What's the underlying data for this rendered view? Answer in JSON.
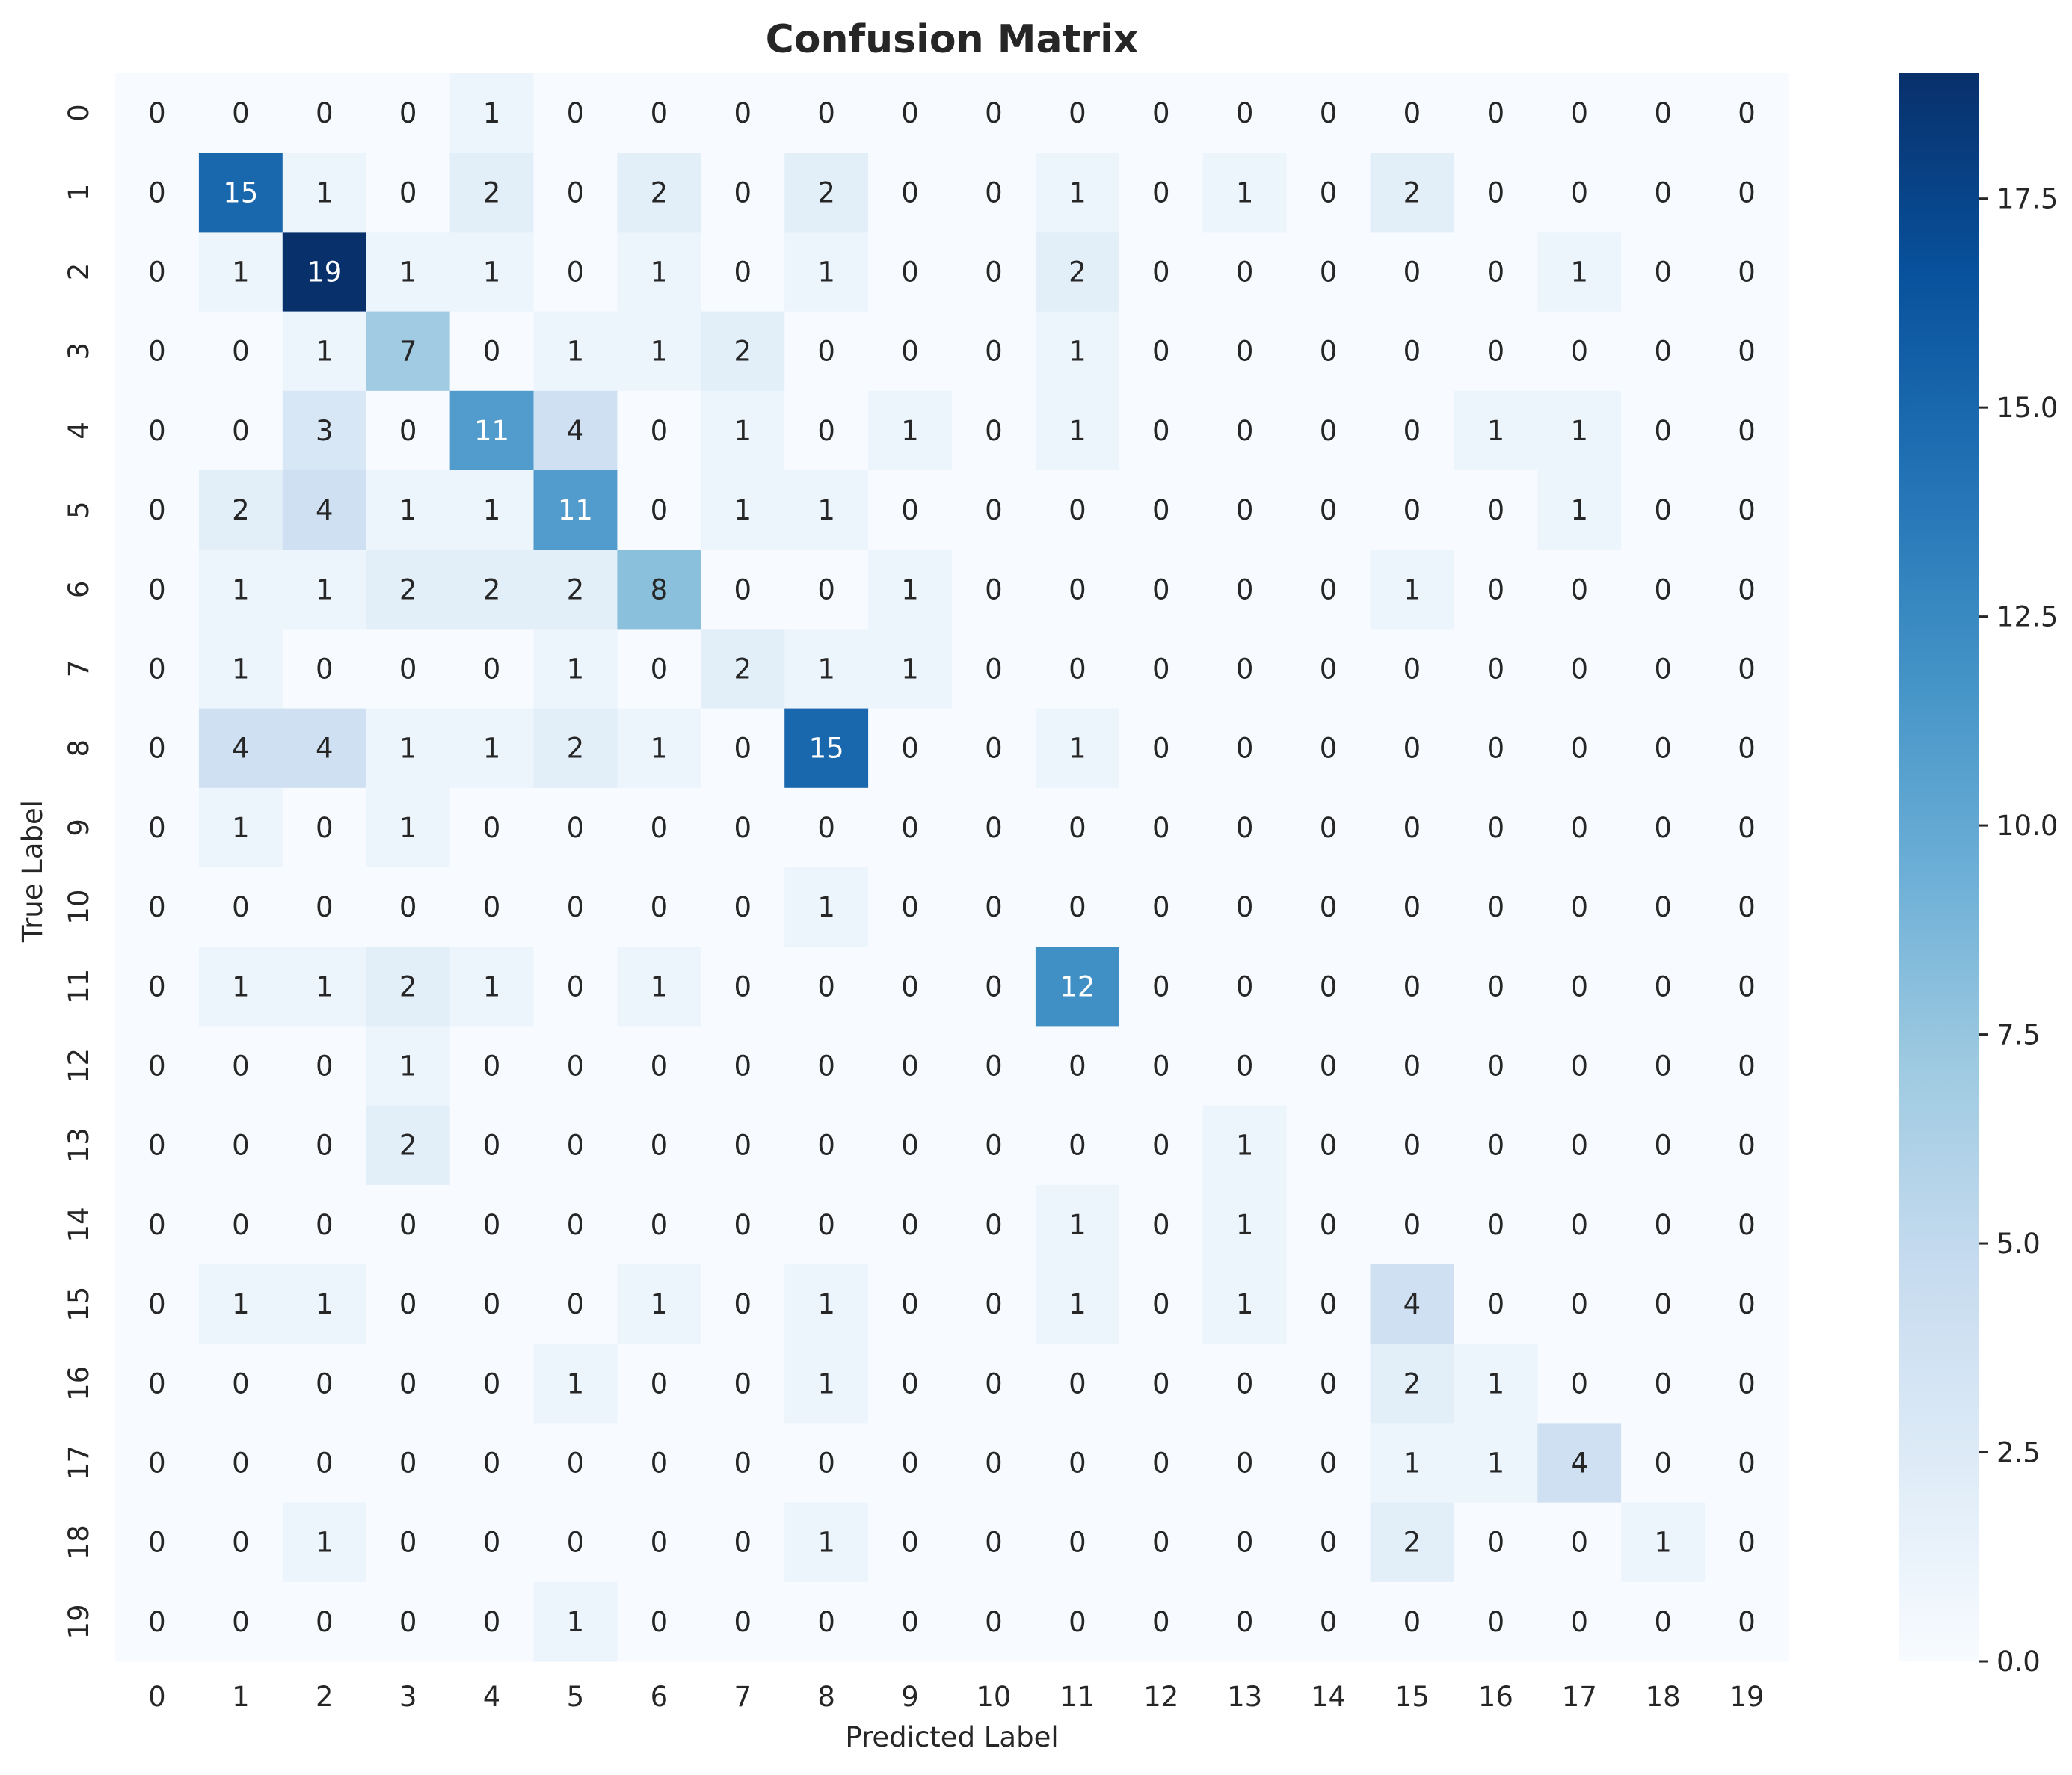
{
  "chart_data": {
    "type": "heatmap",
    "title": "Confusion Matrix",
    "xlabel": "Predicted Label",
    "ylabel": "True Label",
    "x_categories": [
      "0",
      "1",
      "2",
      "3",
      "4",
      "5",
      "6",
      "7",
      "8",
      "9",
      "10",
      "11",
      "12",
      "13",
      "14",
      "15",
      "16",
      "17",
      "18",
      "19"
    ],
    "y_categories": [
      "0",
      "1",
      "2",
      "3",
      "4",
      "5",
      "6",
      "7",
      "8",
      "9",
      "10",
      "11",
      "12",
      "13",
      "14",
      "15",
      "16",
      "17",
      "18",
      "19"
    ],
    "values": [
      [
        0,
        0,
        0,
        0,
        1,
        0,
        0,
        0,
        0,
        0,
        0,
        0,
        0,
        0,
        0,
        0,
        0,
        0,
        0,
        0
      ],
      [
        0,
        15,
        1,
        0,
        2,
        0,
        2,
        0,
        2,
        0,
        0,
        1,
        0,
        1,
        0,
        2,
        0,
        0,
        0,
        0
      ],
      [
        0,
        1,
        19,
        1,
        1,
        0,
        1,
        0,
        1,
        0,
        0,
        2,
        0,
        0,
        0,
        0,
        0,
        1,
        0,
        0
      ],
      [
        0,
        0,
        1,
        7,
        0,
        1,
        1,
        2,
        0,
        0,
        0,
        1,
        0,
        0,
        0,
        0,
        0,
        0,
        0,
        0
      ],
      [
        0,
        0,
        3,
        0,
        11,
        4,
        0,
        1,
        0,
        1,
        0,
        1,
        0,
        0,
        0,
        0,
        1,
        1,
        0,
        0
      ],
      [
        0,
        2,
        4,
        1,
        1,
        11,
        0,
        1,
        1,
        0,
        0,
        0,
        0,
        0,
        0,
        0,
        0,
        1,
        0,
        0
      ],
      [
        0,
        1,
        1,
        2,
        2,
        2,
        8,
        0,
        0,
        1,
        0,
        0,
        0,
        0,
        0,
        1,
        0,
        0,
        0,
        0
      ],
      [
        0,
        1,
        0,
        0,
        0,
        1,
        0,
        2,
        1,
        1,
        0,
        0,
        0,
        0,
        0,
        0,
        0,
        0,
        0,
        0
      ],
      [
        0,
        4,
        4,
        1,
        1,
        2,
        1,
        0,
        15,
        0,
        0,
        1,
        0,
        0,
        0,
        0,
        0,
        0,
        0,
        0
      ],
      [
        0,
        1,
        0,
        1,
        0,
        0,
        0,
        0,
        0,
        0,
        0,
        0,
        0,
        0,
        0,
        0,
        0,
        0,
        0,
        0
      ],
      [
        0,
        0,
        0,
        0,
        0,
        0,
        0,
        0,
        1,
        0,
        0,
        0,
        0,
        0,
        0,
        0,
        0,
        0,
        0,
        0
      ],
      [
        0,
        1,
        1,
        2,
        1,
        0,
        1,
        0,
        0,
        0,
        0,
        12,
        0,
        0,
        0,
        0,
        0,
        0,
        0,
        0
      ],
      [
        0,
        0,
        0,
        1,
        0,
        0,
        0,
        0,
        0,
        0,
        0,
        0,
        0,
        0,
        0,
        0,
        0,
        0,
        0,
        0
      ],
      [
        0,
        0,
        0,
        2,
        0,
        0,
        0,
        0,
        0,
        0,
        0,
        0,
        0,
        1,
        0,
        0,
        0,
        0,
        0,
        0
      ],
      [
        0,
        0,
        0,
        0,
        0,
        0,
        0,
        0,
        0,
        0,
        0,
        1,
        0,
        1,
        0,
        0,
        0,
        0,
        0,
        0
      ],
      [
        0,
        1,
        1,
        0,
        0,
        0,
        1,
        0,
        1,
        0,
        0,
        1,
        0,
        1,
        0,
        4,
        0,
        0,
        0,
        0
      ],
      [
        0,
        0,
        0,
        0,
        0,
        1,
        0,
        0,
        1,
        0,
        0,
        0,
        0,
        0,
        0,
        2,
        1,
        0,
        0,
        0
      ],
      [
        0,
        0,
        0,
        0,
        0,
        0,
        0,
        0,
        0,
        0,
        0,
        0,
        0,
        0,
        0,
        1,
        1,
        4,
        0,
        0
      ],
      [
        0,
        0,
        1,
        0,
        0,
        0,
        0,
        0,
        1,
        0,
        0,
        0,
        0,
        0,
        0,
        2,
        0,
        0,
        1,
        0
      ],
      [
        0,
        0,
        0,
        0,
        0,
        1,
        0,
        0,
        0,
        0,
        0,
        0,
        0,
        0,
        0,
        0,
        0,
        0,
        0,
        0
      ]
    ],
    "colormap": "Blues",
    "colormap_stops": [
      "#f7fbff",
      "#deebf7",
      "#c6dbef",
      "#9ecae1",
      "#6baed6",
      "#4292c6",
      "#2171b5",
      "#08519c",
      "#08306b"
    ],
    "vmin": 0,
    "vmax": 19,
    "colorbar_ticks": [
      "0.0",
      "2.5",
      "5.0",
      "7.5",
      "10.0",
      "12.5",
      "15.0",
      "17.5"
    ],
    "annotation_color_light": "#ffffff",
    "annotation_color_dark": "#262626",
    "grid": false
  }
}
